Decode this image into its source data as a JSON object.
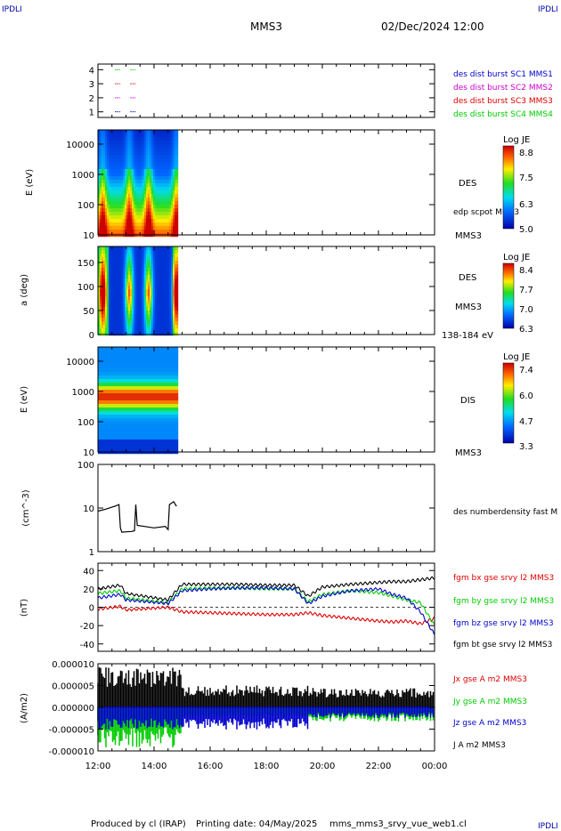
{
  "header": {
    "corner_tl": "IPDLI",
    "corner_tr": "IPDLI",
    "corner_br": "IPDLI",
    "title": "MMS3",
    "datetime": "02/Dec/2024 12:00"
  },
  "footer": {
    "produced_by": "Produced by cl (IRAP)",
    "print_date": "Printing date: 04/May/2025",
    "filename": "mms_mms3_srvy_vue_web1.cl"
  },
  "colors": {
    "blue": "#0000cc",
    "magenta": "#cc00cc",
    "red": "#dd0000",
    "green": "#00cc00",
    "black": "#000000"
  },
  "chart_data": [
    {
      "type": "scatter",
      "name": "spacecraft-availability",
      "yticks": [
        "1",
        "2",
        "3",
        "4"
      ],
      "ylim": [
        0.6,
        4.4
      ],
      "series": [
        {
          "name": "des dist burst SC1 MMS1",
          "color": "#0000cc",
          "y": 1,
          "x": [
            12.7,
            13.25
          ]
        },
        {
          "name": "des dist burst SC2 MMS2",
          "color": "#cc00cc",
          "y": 2,
          "x": [
            12.7,
            13.25
          ]
        },
        {
          "name": "des dist burst SC3 MMS3",
          "color": "#dd0000",
          "y": 3,
          "x": [
            12.7,
            13.25
          ]
        },
        {
          "name": "des dist burst SC4 MMS4",
          "color": "#00cc00",
          "y": 4,
          "x": [
            12.7,
            13.25
          ]
        }
      ]
    },
    {
      "type": "heatmap",
      "name": "des-energy-spectrogram",
      "ylabel": "E (eV)",
      "yticks": [
        "10",
        "100",
        "1000",
        "10000"
      ],
      "label": "DES",
      "overlay": "edp scpot MMS3",
      "spacecraft": "MMS3",
      "colorbar": {
        "title": "Log JE",
        "ticks": [
          "8.8",
          "7.5",
          "6.3",
          "5.0"
        ]
      },
      "data_end_hour": 14.85
    },
    {
      "type": "heatmap",
      "name": "des-pitch-angle",
      "ylabel": "a (deg)",
      "yticks": [
        "0",
        "50",
        "100",
        "150"
      ],
      "label": "DES",
      "spacecraft": "MMS3",
      "energy_range": "138-184 eV",
      "colorbar": {
        "title": "Log JE",
        "ticks": [
          "8.4",
          "7.7",
          "7.0",
          "6.3"
        ]
      },
      "data_end_hour": 14.85
    },
    {
      "type": "heatmap",
      "name": "dis-energy-spectrogram",
      "ylabel": "E (eV)",
      "yticks": [
        "10",
        "100",
        "1000",
        "10000"
      ],
      "label": "DIS",
      "spacecraft": "MMS3",
      "colorbar": {
        "title": "Log JE",
        "ticks": [
          "7.4",
          "6.0",
          "4.7",
          "3.3"
        ]
      },
      "data_end_hour": 14.85
    },
    {
      "type": "line",
      "name": "electron-density",
      "ylabel": "(cm^-3)",
      "yticks": [
        "1",
        "10",
        "100"
      ],
      "scale": "log",
      "ylim": [
        1,
        100
      ],
      "series": [
        {
          "name": "des numberdensity fast M",
          "color": "#000000",
          "x": [
            12.0,
            12.3,
            12.6,
            12.75,
            12.8,
            12.85,
            13.2,
            13.3,
            13.35,
            13.4,
            14.0,
            14.4,
            14.5,
            14.55,
            14.7,
            14.8
          ],
          "y": [
            8.5,
            9.5,
            11.0,
            12.0,
            3.5,
            2.8,
            2.9,
            3.0,
            12.0,
            4.0,
            3.5,
            3.8,
            3.2,
            12.0,
            14.0,
            11.0
          ]
        }
      ]
    },
    {
      "type": "line",
      "name": "magnetic-field",
      "ylabel": "(nT)",
      "yticks": [
        "-40",
        "-20",
        "0",
        "20",
        "40"
      ],
      "ylim": [
        -48,
        48
      ],
      "series": [
        {
          "name": "fgm bx gse srvy l2 MMS3",
          "color": "#dd0000",
          "x": [
            12,
            12.8,
            13.0,
            14.5,
            15,
            16,
            17,
            18,
            19,
            19.5,
            20,
            21,
            22,
            22.5,
            23,
            23.5,
            24
          ],
          "y": [
            -2,
            1,
            -3,
            0,
            -5,
            -6,
            -7,
            -8,
            -8,
            -6,
            -9,
            -12,
            -15,
            -16,
            -15,
            -18,
            -12
          ]
        },
        {
          "name": "fgm by gse srvy l2 MMS3",
          "color": "#00cc00",
          "x": [
            12,
            12.8,
            13.0,
            14.5,
            15,
            16,
            17,
            18,
            19,
            19.5,
            20,
            21,
            22,
            22.5,
            23,
            23.5,
            24
          ],
          "y": [
            15,
            18,
            10,
            5,
            20,
            21,
            21,
            20,
            20,
            6,
            14,
            18,
            16,
            12,
            8,
            5,
            -20
          ]
        },
        {
          "name": "fgm bz gse srvy l2 MMS3",
          "color": "#0000cc",
          "x": [
            12,
            12.8,
            13.0,
            14.5,
            15,
            16,
            17,
            18,
            19,
            19.5,
            20,
            21,
            22,
            22.5,
            23,
            23.5,
            24
          ],
          "y": [
            10,
            14,
            8,
            4,
            18,
            20,
            21,
            21,
            20,
            4,
            12,
            18,
            20,
            14,
            10,
            -5,
            -30
          ]
        },
        {
          "name": "fgm bt gse srvy l2 MMS3",
          "color": "#000000",
          "x": [
            12,
            12.8,
            13.0,
            14.5,
            15,
            16,
            17,
            18,
            19,
            19.5,
            20,
            21,
            22,
            22.5,
            23,
            23.5,
            24
          ],
          "y": [
            20,
            24,
            15,
            8,
            25,
            25,
            25,
            24,
            24,
            12,
            22,
            25,
            27,
            28,
            28,
            30,
            32
          ]
        }
      ]
    },
    {
      "type": "area",
      "name": "current-density",
      "ylabel": "(A/m2)",
      "yticks": [
        "-0.000010",
        "-0.000005",
        "0.000000",
        "0.000005",
        "0.000010"
      ],
      "ylim": [
        -1e-05,
        1e-05
      ],
      "series": [
        {
          "name": "Jx gse A m2 MMS3",
          "color": "#dd0000"
        },
        {
          "name": "Jy gse A m2 MMS3",
          "color": "#00cc00"
        },
        {
          "name": "Jz gse A m2 MMS3",
          "color": "#0000cc"
        },
        {
          "name": "J A m2 MMS3",
          "color": "#000000"
        }
      ]
    }
  ],
  "xaxis": {
    "tick_labels": [
      "12:00",
      "14:00",
      "16:00",
      "18:00",
      "20:00",
      "22:00",
      "00:00"
    ],
    "xlim": [
      12,
      24
    ]
  }
}
